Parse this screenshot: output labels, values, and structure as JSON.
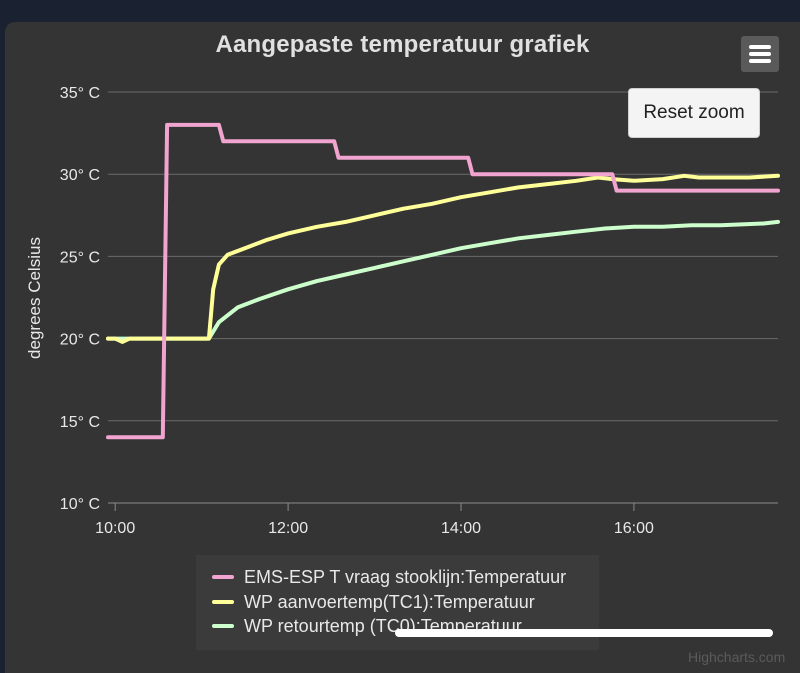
{
  "chart_data": {
    "type": "line",
    "title": "Aangepaste temperatuur grafiek",
    "ylabel": "degrees Celsius",
    "xlabel": "",
    "xlim": [
      "09:55",
      "17:40"
    ],
    "ylim": [
      10,
      35
    ],
    "y_ticks": [
      "10° C",
      "15° C",
      "20° C",
      "25° C",
      "30° C",
      "35° C"
    ],
    "x_ticks": [
      "10:00",
      "12:00",
      "14:00",
      "16:00"
    ],
    "grid": "horizontal",
    "legend_position": "bottom",
    "series": [
      {
        "name": "EMS-ESP T vraag stooklijn:Temperatuur",
        "color": "#f0a4cf",
        "points": [
          [
            "09:55",
            14
          ],
          [
            "10:33",
            14
          ],
          [
            "10:36",
            33
          ],
          [
            "11:12",
            33
          ],
          [
            "11:15",
            32
          ],
          [
            "12:32",
            32
          ],
          [
            "12:35",
            31
          ],
          [
            "14:05",
            31
          ],
          [
            "14:08",
            30
          ],
          [
            "15:45",
            30
          ],
          [
            "15:48",
            29
          ],
          [
            "17:40",
            29
          ]
        ]
      },
      {
        "name": "WP aanvoertemp(TC1):Temperatuur",
        "color": "#ffff99",
        "points": [
          [
            "09:55",
            20
          ],
          [
            "10:00",
            20
          ],
          [
            "10:05",
            19.8
          ],
          [
            "10:10",
            20
          ],
          [
            "11:05",
            20
          ],
          [
            "11:08",
            23
          ],
          [
            "11:12",
            24.5
          ],
          [
            "11:18",
            25.1
          ],
          [
            "11:30",
            25.5
          ],
          [
            "11:45",
            26
          ],
          [
            "12:00",
            26.4
          ],
          [
            "12:20",
            26.8
          ],
          [
            "12:40",
            27.1
          ],
          [
            "13:00",
            27.5
          ],
          [
            "13:20",
            27.9
          ],
          [
            "13:40",
            28.2
          ],
          [
            "14:00",
            28.6
          ],
          [
            "14:20",
            28.9
          ],
          [
            "14:40",
            29.2
          ],
          [
            "15:00",
            29.4
          ],
          [
            "15:20",
            29.6
          ],
          [
            "15:35",
            29.8
          ],
          [
            "15:45",
            29.7
          ],
          [
            "16:00",
            29.6
          ],
          [
            "16:20",
            29.7
          ],
          [
            "16:35",
            29.9
          ],
          [
            "16:45",
            29.8
          ],
          [
            "17:00",
            29.8
          ],
          [
            "17:20",
            29.8
          ],
          [
            "17:40",
            29.9
          ]
        ]
      },
      {
        "name": "WP retourtemp (TC0):Temperatuur",
        "color": "#ccffcc",
        "points": [
          [
            "09:55",
            20
          ],
          [
            "11:05",
            20
          ],
          [
            "11:12",
            21
          ],
          [
            "11:25",
            21.9
          ],
          [
            "11:40",
            22.4
          ],
          [
            "12:00",
            23
          ],
          [
            "12:20",
            23.5
          ],
          [
            "12:40",
            23.9
          ],
          [
            "13:00",
            24.3
          ],
          [
            "13:20",
            24.7
          ],
          [
            "13:40",
            25.1
          ],
          [
            "14:00",
            25.5
          ],
          [
            "14:20",
            25.8
          ],
          [
            "14:40",
            26.1
          ],
          [
            "15:00",
            26.3
          ],
          [
            "15:20",
            26.5
          ],
          [
            "15:40",
            26.7
          ],
          [
            "16:00",
            26.8
          ],
          [
            "16:20",
            26.8
          ],
          [
            "16:40",
            26.9
          ],
          [
            "17:00",
            26.9
          ],
          [
            "17:30",
            27
          ],
          [
            "17:40",
            27.1
          ]
        ]
      }
    ]
  },
  "toolbar": {
    "reset_zoom_label": "Reset zoom",
    "menu_icon": "hamburger-menu-icon"
  },
  "credits": "Highcharts.com"
}
